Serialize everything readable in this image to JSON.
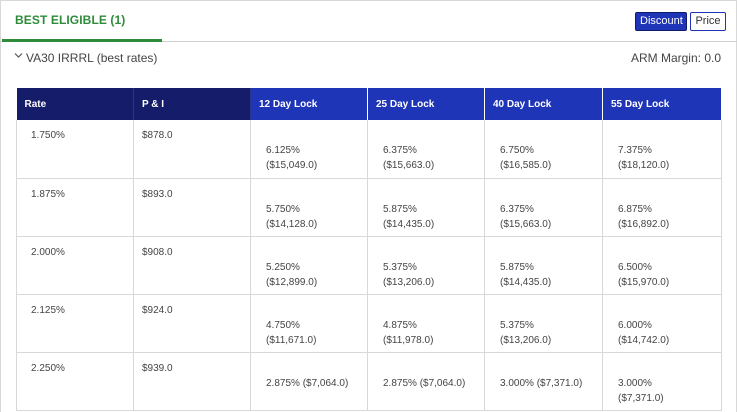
{
  "tabs": {
    "active_label": "BEST ELIGIBLE (1)"
  },
  "toggles": {
    "discount": "Discount",
    "price": "Price"
  },
  "program": {
    "title": "VA30 IRRRL (best rates)",
    "arm_margin": "ARM Margin: 0.0"
  },
  "table": {
    "headers": [
      "Rate",
      "P & I",
      "12 Day Lock",
      "25 Day Lock",
      "40 Day Lock",
      "55 Day Lock"
    ],
    "rows": [
      {
        "rate": "1.750%",
        "pi": "$878.0",
        "locks": [
          {
            "rate": "6.125%",
            "price": "($15,049.0)"
          },
          {
            "rate": "6.375%",
            "price": "($15,663.0)"
          },
          {
            "rate": "6.750%",
            "price": "($16,585.0)"
          },
          {
            "rate": "7.375%",
            "price": "($18,120.0)"
          }
        ]
      },
      {
        "rate": "1.875%",
        "pi": "$893.0",
        "locks": [
          {
            "rate": "5.750%",
            "price": "($14,128.0)"
          },
          {
            "rate": "5.875%",
            "price": "($14,435.0)"
          },
          {
            "rate": "6.375%",
            "price": "($15,663.0)"
          },
          {
            "rate": "6.875%",
            "price": "($16,892.0)"
          }
        ]
      },
      {
        "rate": "2.000%",
        "pi": "$908.0",
        "locks": [
          {
            "rate": "5.250%",
            "price": "($12,899.0)"
          },
          {
            "rate": "5.375%",
            "price": "($13,206.0)"
          },
          {
            "rate": "5.875%",
            "price": "($14,435.0)"
          },
          {
            "rate": "6.500%",
            "price": "($15,970.0)"
          }
        ]
      },
      {
        "rate": "2.125%",
        "pi": "$924.0",
        "locks": [
          {
            "rate": "4.750%",
            "price": "($11,671.0)"
          },
          {
            "rate": "4.875%",
            "price": "($11,978.0)"
          },
          {
            "rate": "5.375%",
            "price": "($13,206.0)"
          },
          {
            "rate": "6.000%",
            "price": "($14,742.0)"
          }
        ]
      },
      {
        "rate": "2.250%",
        "pi": "$939.0",
        "locks": [
          {
            "rate": "2.875%",
            "price": "($7,064.0)",
            "inline": true
          },
          {
            "rate": "2.875%",
            "price": "($7,064.0)",
            "inline": true
          },
          {
            "rate": "3.000%",
            "price": "($7,371.0)",
            "inline": true
          },
          {
            "rate": "3.000%",
            "price": "($7,371.0)",
            "inline": false
          }
        ]
      }
    ]
  }
}
